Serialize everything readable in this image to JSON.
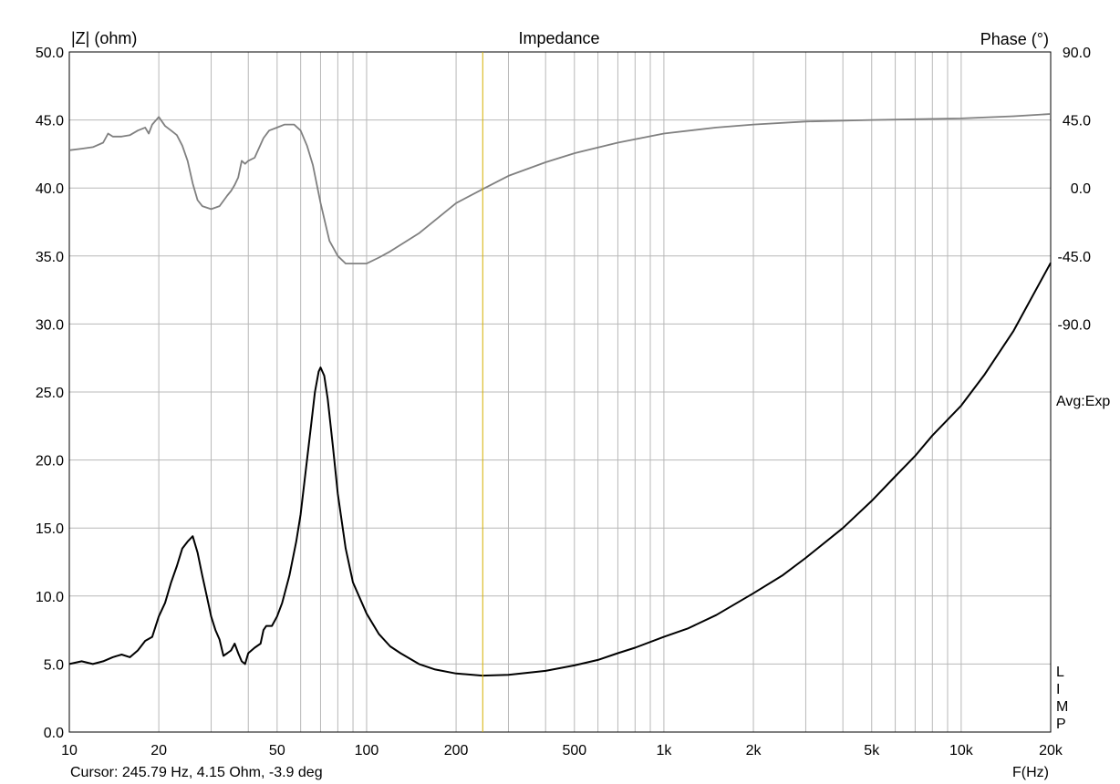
{
  "chart_data": {
    "type": "line",
    "title": "Impedance",
    "ylabel_left": "|Z| (ohm)",
    "ylabel_right": "Phase (°)",
    "xlabel": "F(Hz)",
    "x_scale": "log",
    "xlim": [
      10,
      20000
    ],
    "ylim_left": [
      0,
      50
    ],
    "ylim_right_visible": [
      -90,
      90
    ],
    "ylim_right_scale": [
      -360,
      90
    ],
    "grid": true,
    "x_ticks": [
      {
        "v": 10,
        "label": "10"
      },
      {
        "v": 20,
        "label": "20"
      },
      {
        "v": 50,
        "label": "50"
      },
      {
        "v": 100,
        "label": "100"
      },
      {
        "v": 200,
        "label": "200"
      },
      {
        "v": 500,
        "label": "500"
      },
      {
        "v": 1000,
        "label": "1k"
      },
      {
        "v": 2000,
        "label": "2k"
      },
      {
        "v": 5000,
        "label": "5k"
      },
      {
        "v": 10000,
        "label": "10k"
      },
      {
        "v": 20000,
        "label": "20k"
      }
    ],
    "y_left_ticks": [
      "0.0",
      "5.0",
      "10.0",
      "15.0",
      "20.0",
      "25.0",
      "30.0",
      "35.0",
      "40.0",
      "45.0",
      "50.0"
    ],
    "y_right_ticks": [
      "90.0",
      "45.0",
      "0.0",
      "-45.0",
      "-90.0"
    ],
    "avg_label": "Avg:Exp",
    "side_letters": [
      "L",
      "I",
      "M",
      "P"
    ],
    "cursor": {
      "freq": 245.79,
      "text": "Cursor: 245.79 Hz, 4.15 Ohm, -3.9 deg",
      "color": "#d4b000"
    },
    "series": [
      {
        "key": "impedance",
        "axis": "left",
        "color": "#000000",
        "points": [
          [
            10,
            5.0
          ],
          [
            11,
            5.2
          ],
          [
            12,
            5.0
          ],
          [
            13,
            5.2
          ],
          [
            14,
            5.5
          ],
          [
            15,
            5.7
          ],
          [
            16,
            5.5
          ],
          [
            17,
            6.0
          ],
          [
            18,
            6.7
          ],
          [
            19,
            7.0
          ],
          [
            20,
            8.5
          ],
          [
            21,
            9.5
          ],
          [
            22,
            11.0
          ],
          [
            23,
            12.2
          ],
          [
            24,
            13.5
          ],
          [
            25,
            14.0
          ],
          [
            26,
            14.4
          ],
          [
            27,
            13.2
          ],
          [
            28,
            11.5
          ],
          [
            29,
            10.0
          ],
          [
            30,
            8.5
          ],
          [
            31,
            7.5
          ],
          [
            32,
            6.8
          ],
          [
            33,
            5.6
          ],
          [
            34,
            5.8
          ],
          [
            35,
            6.0
          ],
          [
            36,
            6.5
          ],
          [
            37,
            5.8
          ],
          [
            38,
            5.2
          ],
          [
            39,
            5.0
          ],
          [
            40,
            5.8
          ],
          [
            42,
            6.2
          ],
          [
            44,
            6.5
          ],
          [
            45,
            7.5
          ],
          [
            46,
            7.8
          ],
          [
            48,
            7.8
          ],
          [
            50,
            8.5
          ],
          [
            52,
            9.5
          ],
          [
            55,
            11.5
          ],
          [
            58,
            14.0
          ],
          [
            60,
            16.0
          ],
          [
            63,
            20.0
          ],
          [
            65,
            22.5
          ],
          [
            67,
            25.0
          ],
          [
            69,
            26.5
          ],
          [
            70,
            26.8
          ],
          [
            72,
            26.2
          ],
          [
            74,
            24.5
          ],
          [
            77,
            21.0
          ],
          [
            80,
            17.5
          ],
          [
            85,
            13.5
          ],
          [
            90,
            11.0
          ],
          [
            100,
            8.7
          ],
          [
            110,
            7.2
          ],
          [
            120,
            6.3
          ],
          [
            130,
            5.8
          ],
          [
            150,
            5.0
          ],
          [
            170,
            4.6
          ],
          [
            200,
            4.3
          ],
          [
            245,
            4.15
          ],
          [
            300,
            4.2
          ],
          [
            400,
            4.5
          ],
          [
            500,
            4.9
          ],
          [
            600,
            5.3
          ],
          [
            700,
            5.8
          ],
          [
            800,
            6.2
          ],
          [
            1000,
            7.0
          ],
          [
            1200,
            7.6
          ],
          [
            1500,
            8.6
          ],
          [
            2000,
            10.2
          ],
          [
            2500,
            11.5
          ],
          [
            3000,
            12.8
          ],
          [
            4000,
            15.0
          ],
          [
            5000,
            17.0
          ],
          [
            6000,
            18.8
          ],
          [
            7000,
            20.3
          ],
          [
            8000,
            21.8
          ],
          [
            10000,
            24.0
          ],
          [
            12000,
            26.3
          ],
          [
            15000,
            29.5
          ],
          [
            20000,
            34.5
          ]
        ]
      },
      {
        "key": "phase",
        "axis": "right",
        "color": "#808080",
        "points": [
          [
            10,
            25.0
          ],
          [
            11,
            26.0
          ],
          [
            12,
            27.0
          ],
          [
            13,
            30.0
          ],
          [
            13.5,
            36.0
          ],
          [
            14,
            34.0
          ],
          [
            15,
            34.0
          ],
          [
            16,
            35.0
          ],
          [
            17,
            38.0
          ],
          [
            18,
            40.0
          ],
          [
            18.5,
            36.0
          ],
          [
            19,
            42.0
          ],
          [
            20,
            47.0
          ],
          [
            21,
            41.0
          ],
          [
            22,
            38.0
          ],
          [
            23,
            35.0
          ],
          [
            24,
            28.0
          ],
          [
            25,
            18.0
          ],
          [
            26,
            3.0
          ],
          [
            27,
            -8.0
          ],
          [
            28,
            -12.0
          ],
          [
            30,
            -14.0
          ],
          [
            32,
            -12.0
          ],
          [
            34,
            -5.0
          ],
          [
            35,
            -2.0
          ],
          [
            36,
            2.0
          ],
          [
            37,
            7.0
          ],
          [
            38,
            18.0
          ],
          [
            39,
            16.0
          ],
          [
            40,
            18.0
          ],
          [
            42,
            20.0
          ],
          [
            45,
            33.0
          ],
          [
            47,
            38.0
          ],
          [
            50,
            40.0
          ],
          [
            53,
            42.0
          ],
          [
            57,
            42.0
          ],
          [
            60,
            38.0
          ],
          [
            63,
            28.0
          ],
          [
            66,
            15.0
          ],
          [
            70,
            -10.0
          ],
          [
            75,
            -35.0
          ],
          [
            80,
            -45.0
          ],
          [
            85,
            -50.0
          ],
          [
            90,
            -50.0
          ],
          [
            100,
            -50.0
          ],
          [
            110,
            -46.0
          ],
          [
            120,
            -42.0
          ],
          [
            150,
            -30.0
          ],
          [
            200,
            -10.0
          ],
          [
            250,
            0.0
          ],
          [
            300,
            8.0
          ],
          [
            400,
            17.0
          ],
          [
            500,
            23.0
          ],
          [
            700,
            30.0
          ],
          [
            1000,
            36.0
          ],
          [
            1500,
            40.0
          ],
          [
            2000,
            42.0
          ],
          [
            3000,
            44.0
          ],
          [
            5000,
            45.0
          ],
          [
            7000,
            45.5
          ],
          [
            10000,
            46.0
          ],
          [
            15000,
            47.5
          ],
          [
            20000,
            49.0
          ]
        ]
      }
    ]
  }
}
